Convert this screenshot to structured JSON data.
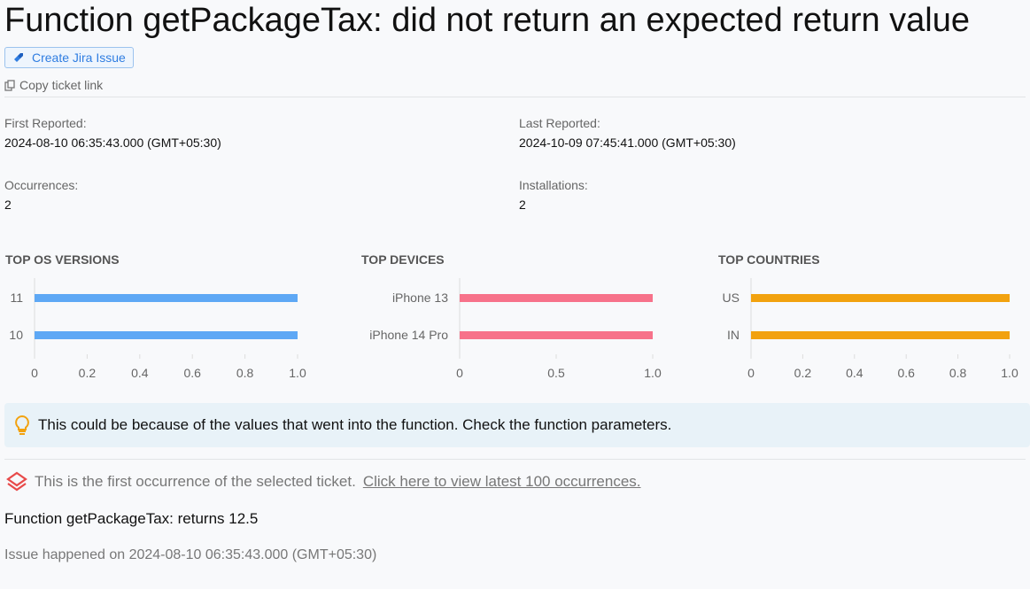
{
  "title": "Function getPackageTax: did not return an expected return value",
  "create_jira_label": "Create Jira Issue",
  "copy_link_label": "Copy ticket link",
  "stats": {
    "first_reported_label": "First Reported:",
    "first_reported": "2024-08-10 06:35:43.000 (GMT+05:30)",
    "last_reported_label": "Last Reported:",
    "last_reported": "2024-10-09 07:45:41.000 (GMT+05:30)",
    "occurrences_label": "Occurrences:",
    "occurrences": "2",
    "installations_label": "Installations:",
    "installations": "2"
  },
  "chart_data": [
    {
      "type": "bar",
      "title": "TOP OS VERSIONS",
      "categories": [
        "11",
        "10"
      ],
      "values": [
        1,
        1
      ],
      "color": "#5ea8f5",
      "xlim": [
        0,
        1
      ],
      "ticks": [
        "0",
        "0.2",
        "0.4",
        "0.6",
        "0.8",
        "1.0"
      ]
    },
    {
      "type": "bar",
      "title": "TOP DEVICES",
      "categories": [
        "iPhone 13",
        "iPhone 14 Pro"
      ],
      "values": [
        1,
        1
      ],
      "color": "#f7728a",
      "xlim": [
        0,
        1
      ],
      "ticks": [
        "0",
        "0.5",
        "1.0"
      ]
    },
    {
      "type": "bar",
      "title": "TOP COUNTRIES",
      "categories": [
        "US",
        "IN"
      ],
      "values": [
        1,
        1
      ],
      "color": "#f2a20f",
      "xlim": [
        0,
        1
      ],
      "ticks": [
        "0",
        "0.2",
        "0.4",
        "0.6",
        "0.8",
        "1.0"
      ]
    }
  ],
  "hint": "This could be because of the values that went into the function. Check the function parameters.",
  "occurrence_note": "This is the first occurrence of the selected ticket.",
  "occurrence_link": "Click here to view latest 100 occurrences.",
  "detail": "Function getPackageTax: returns 12.5",
  "happened": "Issue happened on 2024-08-10 06:35:43.000 (GMT+05:30)"
}
